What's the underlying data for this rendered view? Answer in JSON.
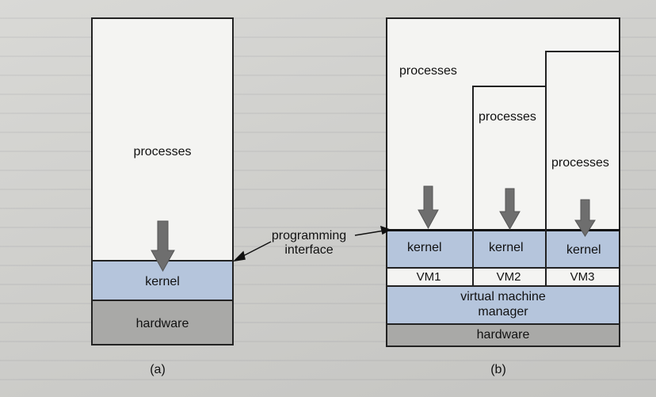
{
  "diagram_a": {
    "processes_label": "processes",
    "kernel_label": "kernel",
    "hardware_label": "hardware",
    "caption": "(a)"
  },
  "annotation": {
    "line1": "programming",
    "line2": "interface"
  },
  "diagram_b": {
    "processes_labels": [
      "processes",
      "processes",
      "processes"
    ],
    "kernel_labels": [
      "kernel",
      "kernel",
      "kernel"
    ],
    "vm_labels": [
      "VM1",
      "VM2",
      "VM3"
    ],
    "vmm_line1": "virtual machine",
    "vmm_line2": "manager",
    "hardware_label": "hardware",
    "caption": "(b)"
  }
}
